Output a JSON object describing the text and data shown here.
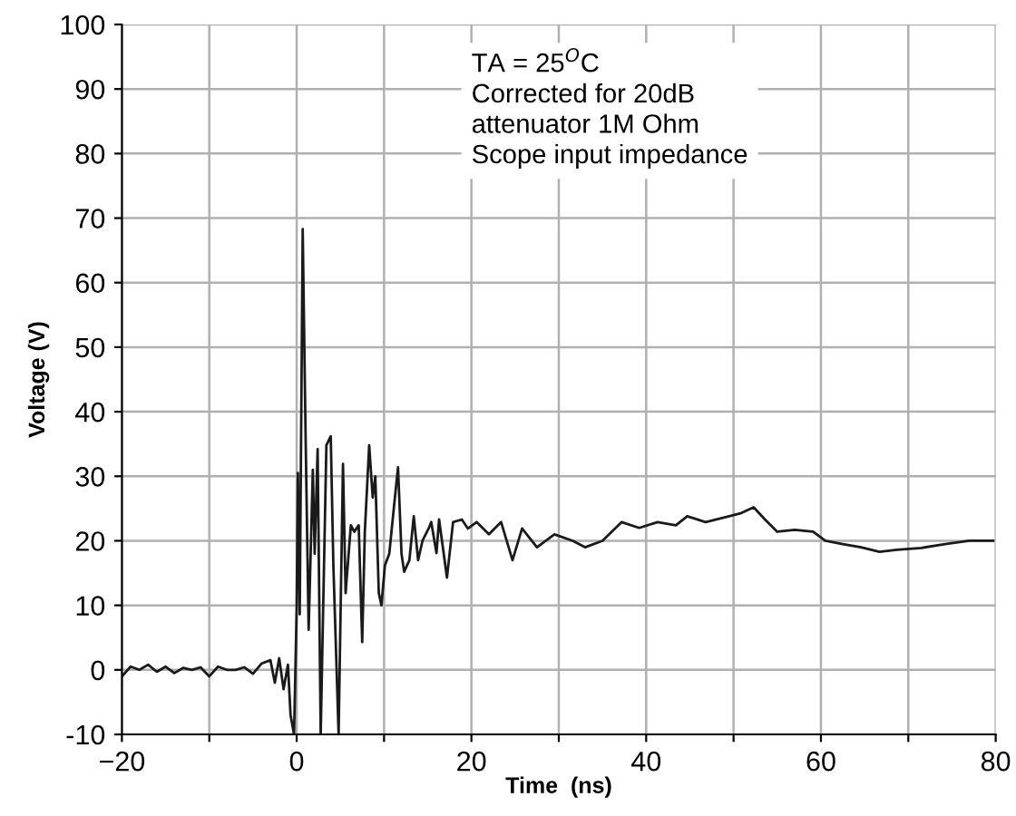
{
  "chart_data": {
    "type": "line",
    "xlabel": "Time  (ns)",
    "ylabel": "Voltage (V)",
    "annotations": [
      "TA = 25$^{O}$C\nCorrected for 20dB\nattenuator 1M Ohm\nScope input impedance"
    ],
    "xlim": [
      -20,
      80
    ],
    "ylim": [
      -10,
      100
    ],
    "xticks": [
      {
        "value": -20,
        "label": "−20"
      },
      {
        "value": -10,
        "label": null
      },
      0,
      {
        "value": 10,
        "label": null
      },
      20,
      {
        "value": 30,
        "label": null
      },
      40,
      {
        "value": 50,
        "label": null
      },
      60,
      {
        "value": 70,
        "label": null
      },
      80
    ],
    "yticks": [
      -10,
      0,
      10,
      20,
      30,
      40,
      50,
      60,
      70,
      80,
      90,
      100
    ],
    "grid": true,
    "legend": false,
    "marker": "none",
    "line_style": "solid",
    "series": [
      {
        "color": "#1a1a1a",
        "x": [
          -20,
          -19,
          -18,
          -17,
          -16,
          -15,
          -14,
          -13,
          -12,
          -11,
          -10,
          -9,
          -8,
          -7,
          -6,
          -5,
          -4,
          -3,
          -2.5,
          -2,
          -1.5,
          -1,
          -0.7,
          -0.3,
          0,
          0.14,
          0.35,
          0.69,
          1.03,
          1.37,
          1.85,
          2.06,
          2.4,
          2.75,
          3.4,
          3.9,
          4.2,
          4.8,
          5.3,
          5.6,
          6.2,
          6.6,
          7.1,
          7.5,
          7.8,
          8.3,
          8.7,
          9,
          9.4,
          9.7,
          10.1,
          10.6,
          11.1,
          11.6,
          12,
          12.3,
          12.9,
          13.4,
          13.9,
          14.4,
          15.1,
          15.4,
          16,
          16.3,
          17.2,
          17.9,
          18.9,
          19.6,
          20.6,
          22,
          23.4,
          24.7,
          25.8,
          27.5,
          29.5,
          31.6,
          33,
          35,
          37.2,
          39.2,
          41.3,
          43.4,
          44.7,
          46.8,
          49.5,
          50.9,
          52.3,
          53.6,
          55,
          57,
          59.1,
          60.5,
          62.5,
          64.6,
          66.7,
          68.7,
          71.5,
          74.2,
          77,
          79.7
        ],
        "values": [
          -1,
          0.5,
          0,
          0.8,
          -0.3,
          0.5,
          -0.5,
          0.3,
          0,
          0.4,
          -1,
          0.5,
          0,
          0,
          0.4,
          -0.6,
          1,
          1.5,
          -2,
          1.8,
          -3,
          0.8,
          -7,
          -10,
          9.5,
          30.5,
          8.6,
          68.3,
          35.6,
          6.2,
          31,
          18,
          34.2,
          -10,
          34.8,
          36.2,
          16.2,
          -10,
          31.9,
          11.9,
          22.4,
          21.4,
          22.4,
          4.3,
          21.4,
          34.8,
          26.7,
          30,
          11.9,
          10,
          16.2,
          18,
          24.8,
          31.4,
          18,
          15.2,
          17,
          23.8,
          17,
          20,
          21.9,
          22.9,
          18.1,
          23.3,
          14.3,
          22.9,
          23.3,
          21.9,
          22.9,
          21,
          22.9,
          17,
          21.9,
          19,
          21,
          20,
          19,
          20,
          22.9,
          22,
          22.9,
          22.4,
          23.8,
          22.9,
          23.8,
          24.3,
          25.2,
          23.3,
          21.4,
          21.7,
          21.4,
          20,
          19.5,
          19,
          18.3,
          18.6,
          18.9,
          19.5,
          20,
          20
        ]
      }
    ]
  }
}
